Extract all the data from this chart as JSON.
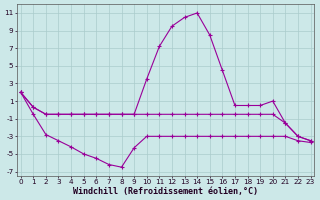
{
  "xlabel": "Windchill (Refroidissement éolien,°C)",
  "x": [
    0,
    1,
    2,
    3,
    4,
    5,
    6,
    7,
    8,
    9,
    10,
    11,
    12,
    13,
    14,
    15,
    16,
    17,
    18,
    19,
    20,
    21,
    22,
    23
  ],
  "y_top": [
    2.0,
    0.3,
    -0.5,
    -0.5,
    -0.5,
    -0.5,
    -0.5,
    -0.5,
    -0.5,
    -0.5,
    3.5,
    7.2,
    9.5,
    10.5,
    11.0,
    8.5,
    4.5,
    0.5,
    0.5,
    0.5,
    1.0,
    -1.5,
    -3.0,
    -3.5
  ],
  "y_mid": [
    2.0,
    0.3,
    -0.5,
    -0.5,
    -0.5,
    -0.5,
    -0.5,
    -0.5,
    -0.5,
    -0.5,
    -0.5,
    -0.5,
    -0.5,
    -0.5,
    -0.5,
    -0.5,
    -0.5,
    -0.5,
    -0.5,
    -0.5,
    -0.5,
    -1.5,
    -3.0,
    -3.5
  ],
  "y_bot": [
    2.0,
    -0.5,
    -2.8,
    -3.5,
    -4.2,
    -5.0,
    -5.5,
    -6.2,
    -6.5,
    -4.3,
    -3.0,
    -3.0,
    -3.0,
    -3.0,
    -3.0,
    -3.0,
    -3.0,
    -3.0,
    -3.0,
    -3.0,
    -3.0,
    -3.0,
    -3.5,
    -3.7
  ],
  "bg_color": "#cce8e8",
  "grid_color": "#aacccc",
  "line_color": "#990099",
  "ylim": [
    -7.5,
    12.0
  ],
  "yticks": [
    -7,
    -5,
    -3,
    -1,
    1,
    3,
    5,
    7,
    9,
    11
  ],
  "xlim": [
    -0.3,
    23.3
  ],
  "xticks": [
    0,
    1,
    2,
    3,
    4,
    5,
    6,
    7,
    8,
    9,
    10,
    11,
    12,
    13,
    14,
    15,
    16,
    17,
    18,
    19,
    20,
    21,
    22,
    23
  ],
  "tick_fontsize": 5.2,
  "xlabel_fontsize": 6.0
}
